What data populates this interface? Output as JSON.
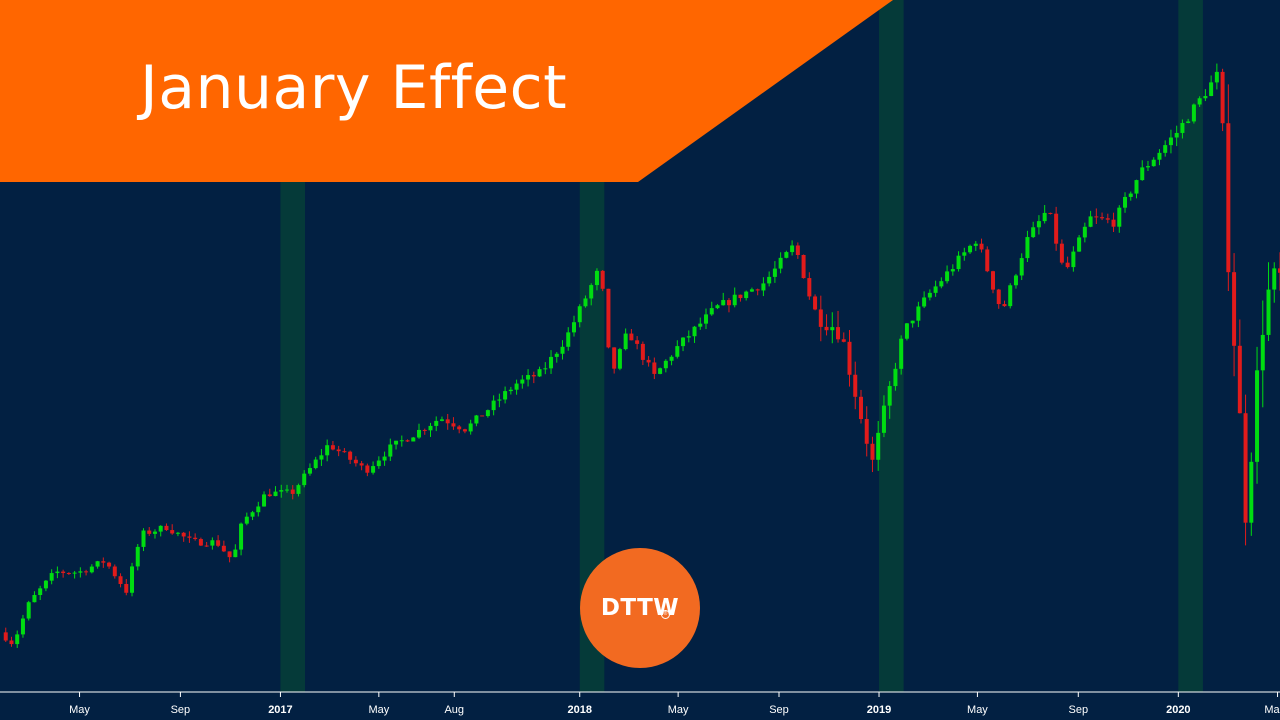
{
  "title": "January Effect",
  "logo": {
    "text": "DTTW",
    "mark": "®",
    "color": "#f26a21"
  },
  "colors": {
    "background": "#022042",
    "banner": "#ff6600",
    "up": "#00dd11",
    "down": "#e11b1b",
    "highlight": "#053a39",
    "axis": "#ffffff"
  },
  "chart_data": {
    "type": "candlestick",
    "title": "January Effect",
    "x_tick_labels": [
      {
        "label": "May",
        "date": "2016-05-01",
        "bold": false
      },
      {
        "label": "Sep",
        "date": "2016-09-01",
        "bold": false
      },
      {
        "label": "2017",
        "date": "2017-01-01",
        "bold": true
      },
      {
        "label": "May",
        "date": "2017-05-01",
        "bold": false
      },
      {
        "label": "Aug",
        "date": "2017-08-01",
        "bold": false
      },
      {
        "label": "2018",
        "date": "2018-01-01",
        "bold": true
      },
      {
        "label": "May",
        "date": "2018-05-01",
        "bold": false
      },
      {
        "label": "Sep",
        "date": "2018-09-01",
        "bold": false
      },
      {
        "label": "2019",
        "date": "2019-01-01",
        "bold": true
      },
      {
        "label": "May",
        "date": "2019-05-01",
        "bold": false
      },
      {
        "label": "Sep",
        "date": "2019-09-01",
        "bold": false
      },
      {
        "label": "2020",
        "date": "2020-01-01",
        "bold": true
      },
      {
        "label": "Ma",
        "date": "2020-05-01",
        "bold": false
      }
    ],
    "x_range": [
      "2016-01-25",
      "2020-05-04"
    ],
    "y_range_estimate": [
      1800,
      3500
    ],
    "highlighted_periods": [
      {
        "start": "2017-01-01",
        "end": "2017-01-31"
      },
      {
        "start": "2018-01-01",
        "end": "2018-01-31"
      },
      {
        "start": "2019-01-01",
        "end": "2019-01-31"
      },
      {
        "start": "2020-01-01",
        "end": "2020-01-31"
      }
    ],
    "close_path_estimate": [
      [
        "2016-01-25",
        1900
      ],
      [
        "2016-02-10",
        1870
      ],
      [
        "2016-03-01",
        1980
      ],
      [
        "2016-04-01",
        2060
      ],
      [
        "2016-05-01",
        2060
      ],
      [
        "2016-06-01",
        2090
      ],
      [
        "2016-06-27",
        2010
      ],
      [
        "2016-07-15",
        2160
      ],
      [
        "2016-08-15",
        2180
      ],
      [
        "2016-09-15",
        2140
      ],
      [
        "2016-10-15",
        2140
      ],
      [
        "2016-11-04",
        2090
      ],
      [
        "2016-11-15",
        2190
      ],
      [
        "2016-12-15",
        2270
      ],
      [
        "2017-01-15",
        2270
      ],
      [
        "2017-02-15",
        2360
      ],
      [
        "2017-03-01",
        2400
      ],
      [
        "2017-04-15",
        2330
      ],
      [
        "2017-05-15",
        2390
      ],
      [
        "2017-06-15",
        2430
      ],
      [
        "2017-07-15",
        2470
      ],
      [
        "2017-08-15",
        2440
      ],
      [
        "2017-09-15",
        2500
      ],
      [
        "2017-10-15",
        2560
      ],
      [
        "2017-11-15",
        2590
      ],
      [
        "2017-12-15",
        2680
      ],
      [
        "2018-01-26",
        2870
      ],
      [
        "2018-02-08",
        2580
      ],
      [
        "2018-03-01",
        2700
      ],
      [
        "2018-04-02",
        2580
      ],
      [
        "2018-05-01",
        2660
      ],
      [
        "2018-06-15",
        2760
      ],
      [
        "2018-08-15",
        2830
      ],
      [
        "2018-09-20",
        2930
      ],
      [
        "2018-10-15",
        2750
      ],
      [
        "2018-11-15",
        2700
      ],
      [
        "2018-12-24",
        2350
      ],
      [
        "2019-01-31",
        2700
      ],
      [
        "2019-02-28",
        2790
      ],
      [
        "2019-04-30",
        2945
      ],
      [
        "2019-05-31",
        2750
      ],
      [
        "2019-06-30",
        2940
      ],
      [
        "2019-07-26",
        3025
      ],
      [
        "2019-08-15",
        2850
      ],
      [
        "2019-09-15",
        3000
      ],
      [
        "2019-10-15",
        2990
      ],
      [
        "2019-11-15",
        3120
      ],
      [
        "2019-12-31",
        3230
      ],
      [
        "2020-02-19",
        3385
      ],
      [
        "2020-03-01",
        2950
      ],
      [
        "2020-03-23",
        2230
      ],
      [
        "2020-04-15",
        2780
      ],
      [
        "2020-05-01",
        2830
      ]
    ]
  }
}
